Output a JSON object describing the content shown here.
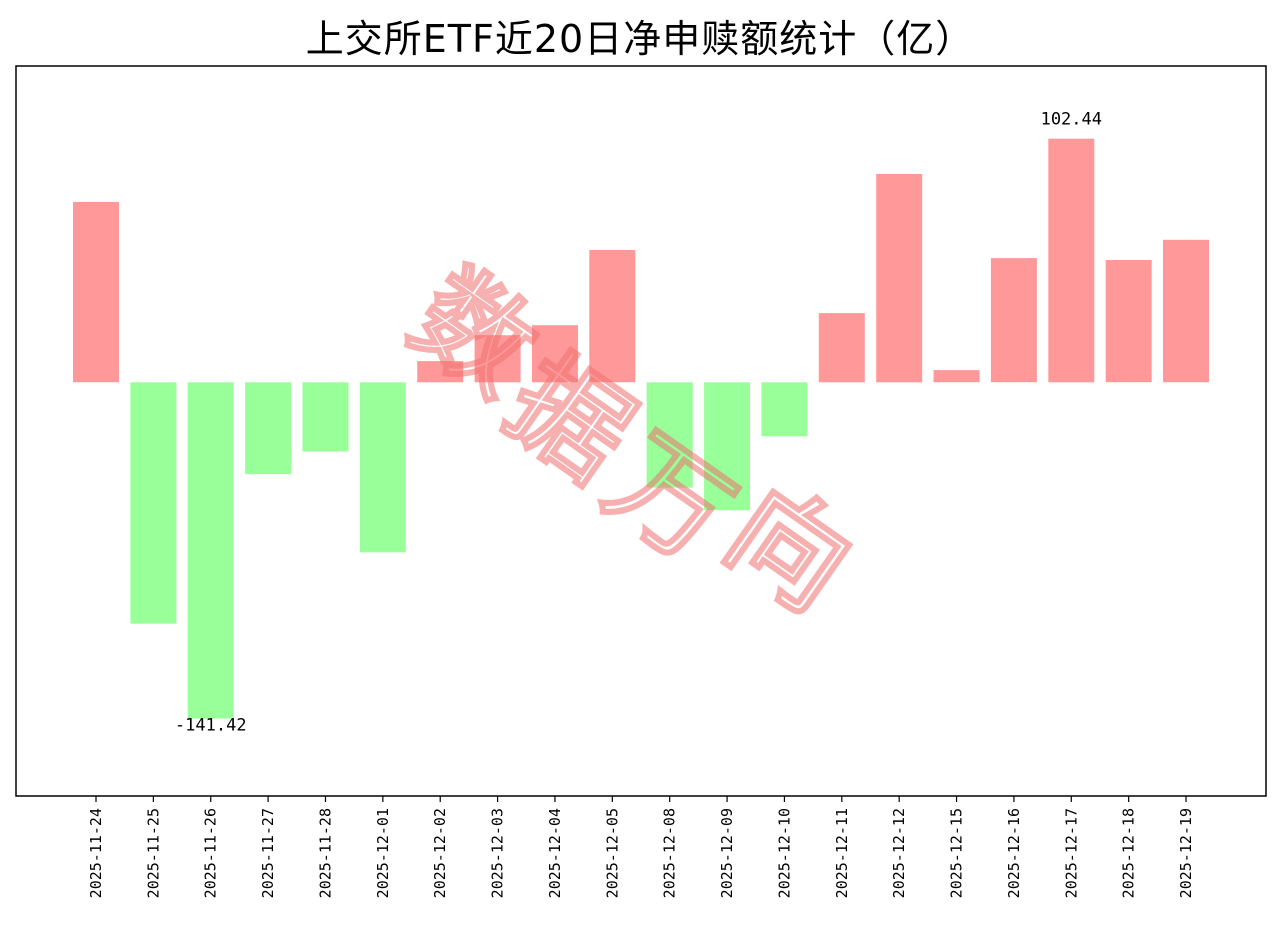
{
  "chart_data": {
    "type": "bar",
    "title": "上交所ETF近20日净申赎额统计（亿）",
    "xlabel": "",
    "ylabel": "",
    "categories": [
      "2025-11-24",
      "2025-11-25",
      "2025-11-26",
      "2025-11-27",
      "2025-11-28",
      "2025-12-01",
      "2025-12-02",
      "2025-12-03",
      "2025-12-04",
      "2025-12-05",
      "2025-12-08",
      "2025-12-09",
      "2025-12-10",
      "2025-12-11",
      "2025-12-12",
      "2025-12-15",
      "2025-12-16",
      "2025-12-17",
      "2025-12-18",
      "2025-12-19"
    ],
    "values": [
      75.8,
      -101.5,
      -141.42,
      -38.6,
      -29.1,
      -71.5,
      8.9,
      19.8,
      24.0,
      55.6,
      -44.3,
      -53.8,
      -22.7,
      29.1,
      87.6,
      5.1,
      52.2,
      102.44,
      51.4,
      59.9
    ],
    "data_labels": [
      {
        "category": "2025-11-26",
        "text": "-141.42"
      },
      {
        "category": "2025-12-17",
        "text": "102.44"
      }
    ],
    "ylim": [
      -174.0,
      133.0
    ],
    "y_ticks_shown": false,
    "grid": false,
    "legend": "none",
    "colors": {
      "positive": "#ff9999",
      "negative": "#99ff99"
    }
  },
  "watermark": {
    "text": "数据万向",
    "color": "#f07070"
  }
}
